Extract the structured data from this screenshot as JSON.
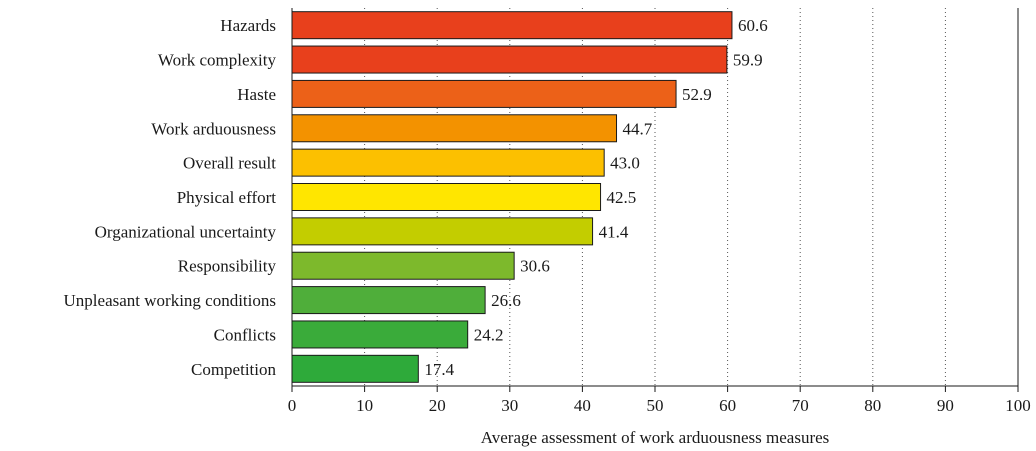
{
  "chart_data": {
    "type": "bar",
    "orientation": "horizontal",
    "categories": [
      "Hazards",
      "Work complexity",
      "Haste",
      "Work arduousness",
      "Overall result",
      "Physical effort",
      "Organizational uncertainty",
      "Responsibility",
      "Unpleasant working conditions",
      "Conflicts",
      "Competition"
    ],
    "values": [
      60.6,
      59.9,
      52.9,
      44.7,
      43.0,
      42.5,
      41.4,
      30.6,
      26.6,
      24.2,
      17.4
    ],
    "value_labels": [
      "60.6",
      "59.9",
      "52.9",
      "44.7",
      "43.0",
      "42.5",
      "41.4",
      "30.6",
      "26.6",
      "24.2",
      "17.4"
    ],
    "colors": [
      "#e8401c",
      "#e8401c",
      "#ec6118",
      "#f39200",
      "#fcc000",
      "#ffe600",
      "#c3cd00",
      "#7db92c",
      "#4fae3a",
      "#3aab3a",
      "#2eaa3a"
    ],
    "xlabel": "Average assessment of work arduousness measures",
    "ylabel": "",
    "xlim": [
      0,
      100
    ],
    "xticks": [
      "0",
      "10",
      "20",
      "30",
      "40",
      "50",
      "60",
      "70",
      "80",
      "90",
      "100"
    ],
    "grid": "vertical-dotted",
    "legend": "none"
  }
}
